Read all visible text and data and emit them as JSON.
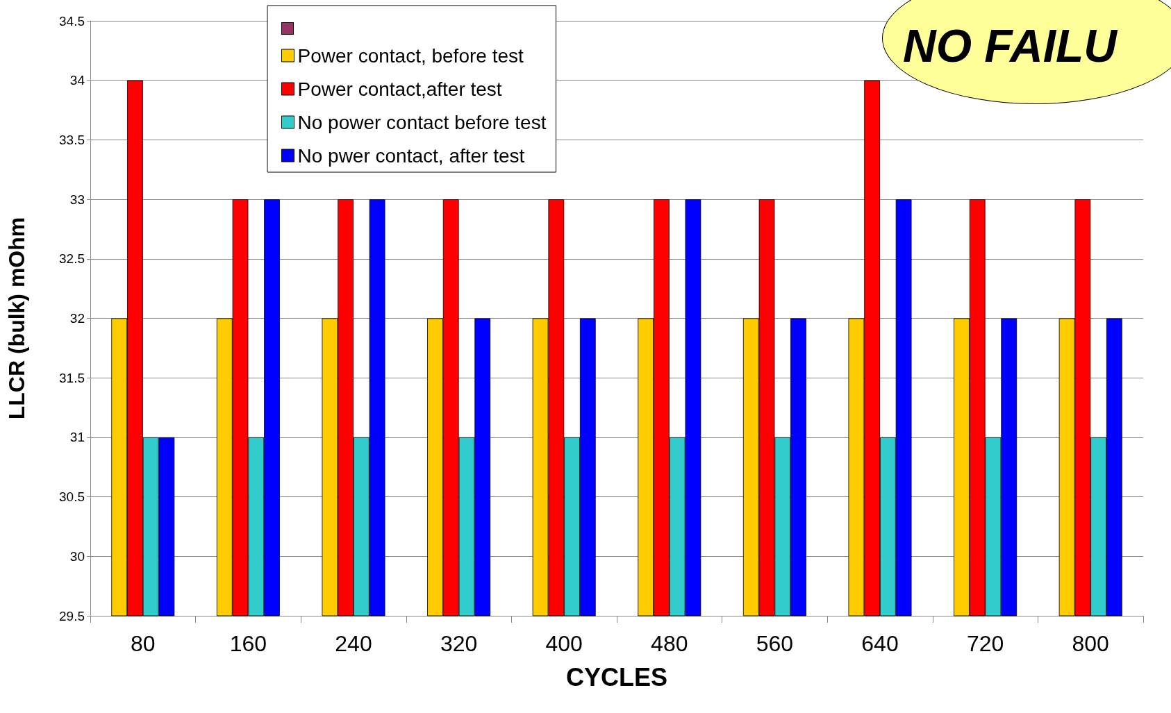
{
  "chart_data": {
    "type": "bar",
    "xlabel": "CYCLES",
    "ylabel": "LLCR (bulk) mOhm",
    "categories": [
      "80",
      "160",
      "240",
      "320",
      "400",
      "480",
      "560",
      "640",
      "720",
      "800"
    ],
    "series": [
      {
        "name": "Power contact, before test",
        "color": "#ffcc00",
        "values": [
          32,
          32,
          32,
          32,
          32,
          32,
          32,
          32,
          32,
          32
        ]
      },
      {
        "name": "Power contact,after test",
        "color": "#ff0000",
        "values": [
          34,
          33,
          33,
          33,
          33,
          33,
          33,
          34,
          33,
          33
        ]
      },
      {
        "name": "No power contact before test",
        "color": "#33cccc",
        "values": [
          31,
          31,
          31,
          31,
          31,
          31,
          31,
          31,
          31,
          31
        ]
      },
      {
        "name": "No pwer contact, after test",
        "color": "#0000ff",
        "values": [
          31,
          33,
          33,
          32,
          32,
          33,
          32,
          33,
          32,
          32
        ]
      }
    ],
    "ylim": [
      29.5,
      34.5
    ],
    "yticks": [
      29.5,
      30,
      30.5,
      31,
      31.5,
      32,
      32.5,
      33,
      33.5,
      34,
      34.5
    ],
    "grid": "y",
    "legend": "top",
    "annotations": [
      "NO FAILU"
    ]
  }
}
